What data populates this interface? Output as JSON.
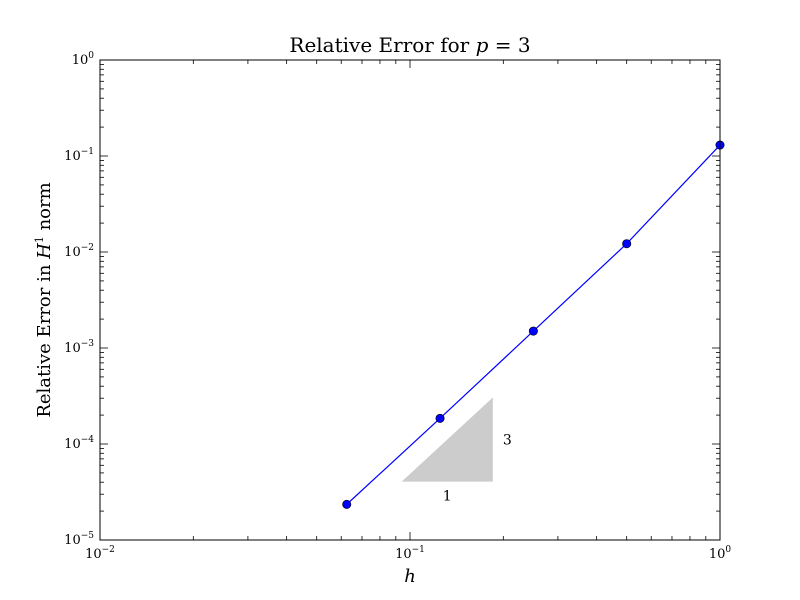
{
  "chart_data": {
    "type": "line",
    "title": "Relative Error for p = 3",
    "title_parts": {
      "prefix": "Relative Error for ",
      "var": "p",
      "rest": " = 3"
    },
    "xlabel": "h",
    "ylabel": "Relative Error in H¹ norm",
    "ylabel_parts": {
      "prefix": "Relative Error in ",
      "var": "H",
      "sup": "1",
      "suffix": " norm"
    },
    "x_scale": "log",
    "y_scale": "log",
    "xlim": [
      0.01,
      1
    ],
    "ylim": [
      1e-05,
      1
    ],
    "x_ticks": [
      {
        "base": "10",
        "exp": "−2",
        "value": 0.01
      },
      {
        "base": "10",
        "exp": "−1",
        "value": 0.1
      },
      {
        "base": "10",
        "exp": "0",
        "value": 1
      }
    ],
    "y_ticks": [
      {
        "base": "10",
        "exp": "−5",
        "value": 1e-05
      },
      {
        "base": "10",
        "exp": "−4",
        "value": 0.0001
      },
      {
        "base": "10",
        "exp": "−3",
        "value": 0.001
      },
      {
        "base": "10",
        "exp": "−2",
        "value": 0.01
      },
      {
        "base": "10",
        "exp": "−1",
        "value": 0.1
      },
      {
        "base": "10",
        "exp": "0",
        "value": 1
      }
    ],
    "grid": false,
    "series": [
      {
        "color": "#0000ff",
        "marker": "circle",
        "x": [
          0.0625,
          0.125,
          0.25,
          0.5,
          1.0
        ],
        "y": [
          2.35e-05,
          0.000185,
          0.0015,
          0.0122,
          0.13
        ]
      }
    ],
    "slope_triangle": {
      "color": "#cccccc",
      "x_range": [
        0.094,
        0.185
      ],
      "y_range": [
        4.05e-05,
        0.000305
      ],
      "run_label": "1",
      "rise_label": "3"
    }
  }
}
